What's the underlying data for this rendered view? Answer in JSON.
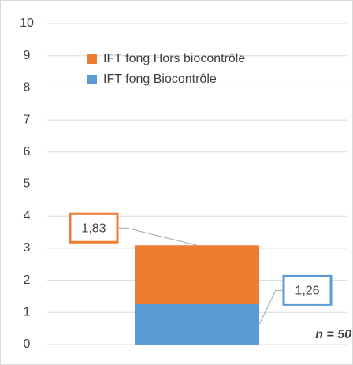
{
  "chart_data": {
    "type": "stacked_bar",
    "categories": [
      null
    ],
    "series": [
      {
        "name": "IFT fong Biocontrôle",
        "color": "#5b9bd5",
        "values": [
          1.26
        ],
        "value_labels": [
          "1,26"
        ]
      },
      {
        "name": "IFT  fong Hors biocontrôle",
        "color": "#ed7d31",
        "values": [
          1.83
        ],
        "value_labels": [
          "1,83"
        ]
      }
    ],
    "ylim": [
      0,
      10
    ],
    "yticks": [
      0,
      1,
      2,
      3,
      4,
      5,
      6,
      7,
      8,
      9,
      10
    ],
    "grid": true,
    "annotation": "n = 50"
  }
}
